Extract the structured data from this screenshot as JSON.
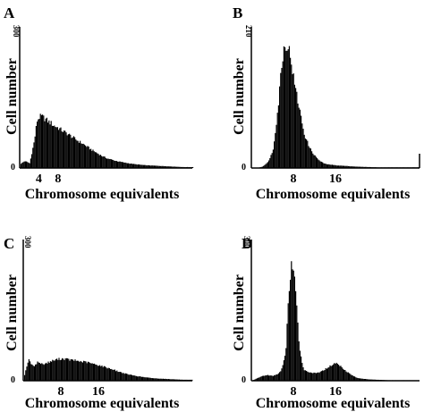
{
  "chart_data": [
    {
      "type": "area",
      "panel_label": "A",
      "xlabel": "Chromosome equivalents",
      "ylabel": "Cell number",
      "y_tick_labels": [
        "0",
        "300"
      ],
      "xlim": [
        0,
        36
      ],
      "ylim": [
        0,
        300
      ],
      "x_ticks": [
        4,
        8
      ],
      "x_tick_labels": [
        "4",
        "8"
      ],
      "x": [
        0,
        1,
        2,
        3,
        3.5,
        4,
        4.5,
        5,
        5.5,
        6,
        6.5,
        7,
        7.5,
        8,
        9,
        10,
        11,
        12,
        13,
        14,
        15,
        16,
        17,
        18,
        20,
        22,
        24,
        26,
        28,
        30,
        32,
        34,
        36
      ],
      "values": [
        8,
        15,
        10,
        60,
        100,
        108,
        110,
        106,
        102,
        98,
        95,
        90,
        88,
        85,
        78,
        72,
        65,
        58,
        52,
        45,
        38,
        32,
        26,
        21,
        15,
        11,
        8,
        6,
        5,
        4,
        3,
        2,
        2
      ]
    },
    {
      "type": "area",
      "panel_label": "B",
      "xlabel": "Chromosome equivalents",
      "ylabel": "Cell number",
      "y_tick_labels": [
        "0",
        "210"
      ],
      "xlim": [
        0,
        32
      ],
      "ylim": [
        0,
        210
      ],
      "x_ticks": [
        8,
        16
      ],
      "x_tick_labels": [
        "8",
        "16"
      ],
      "x": [
        0,
        1,
        2,
        3,
        4,
        5,
        5.5,
        6,
        6.5,
        7,
        7.5,
        8,
        8.5,
        9,
        9.5,
        10,
        11,
        12,
        13,
        14,
        16,
        18,
        20,
        24,
        28,
        32
      ],
      "values": [
        0,
        0,
        2,
        8,
        25,
        90,
        140,
        175,
        185,
        178,
        160,
        130,
        110,
        90,
        70,
        50,
        30,
        18,
        10,
        6,
        4,
        3,
        2,
        1,
        1,
        1
      ]
    },
    {
      "type": "area",
      "panel_label": "C",
      "xlabel": "Chromosome equivalents",
      "ylabel": "Cell number",
      "y_tick_labels": [
        "0",
        "300"
      ],
      "xlim": [
        0,
        36
      ],
      "ylim": [
        0,
        300
      ],
      "x_ticks": [
        8,
        16
      ],
      "x_tick_labels": [
        "8",
        "16"
      ],
      "x": [
        0,
        1,
        2,
        3,
        4,
        5,
        6,
        7,
        8,
        9,
        10,
        11,
        12,
        13,
        14,
        15,
        16,
        17,
        18,
        19,
        20,
        22,
        24,
        26,
        28,
        30,
        32,
        34,
        36
      ],
      "values": [
        5,
        45,
        30,
        40,
        35,
        38,
        42,
        45,
        47,
        46,
        44,
        43,
        41,
        40,
        38,
        35,
        33,
        30,
        27,
        24,
        20,
        14,
        10,
        7,
        5,
        4,
        3,
        2,
        2
      ]
    },
    {
      "type": "area",
      "panel_label": "D",
      "xlabel": "Chromosome equivalents",
      "ylabel": "Cell number",
      "y_tick_labels": [
        "0",
        "300"
      ],
      "xlim": [
        0,
        32
      ],
      "ylim": [
        0,
        300
      ],
      "x_ticks": [
        8,
        16
      ],
      "x_tick_labels": [
        "8",
        "16"
      ],
      "x": [
        0,
        1,
        2,
        3,
        4,
        5,
        5.5,
        6,
        6.5,
        7,
        7.5,
        8,
        8.5,
        9,
        9.5,
        10,
        11,
        12,
        13,
        14,
        15,
        16,
        17,
        18,
        19,
        20,
        22,
        24,
        26,
        28,
        30,
        32
      ],
      "values": [
        0,
        5,
        10,
        12,
        10,
        15,
        20,
        35,
        70,
        180,
        250,
        230,
        160,
        80,
        40,
        22,
        18,
        16,
        18,
        25,
        32,
        38,
        30,
        20,
        12,
        6,
        3,
        2,
        1,
        1,
        1,
        0
      ]
    }
  ]
}
